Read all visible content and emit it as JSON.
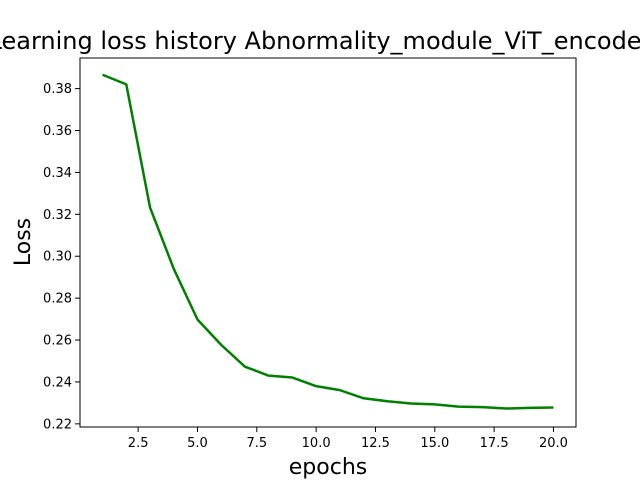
{
  "chart_data": {
    "type": "line",
    "title": "Learning loss history Abnormality_module_ViT_encoder",
    "xlabel": "epochs",
    "ylabel": "Loss",
    "xlim": [
      0.05,
      20.95
    ],
    "ylim": [
      0.2185,
      0.3946
    ],
    "x_ticks": [
      2.5,
      5.0,
      7.5,
      10.0,
      12.5,
      15.0,
      17.5,
      20.0
    ],
    "x_tick_labels": [
      "2.5",
      "5.0",
      "7.5",
      "10.0",
      "12.5",
      "15.0",
      "17.5",
      "20.0"
    ],
    "y_ticks": [
      0.22,
      0.24,
      0.26,
      0.28,
      0.3,
      0.32,
      0.34,
      0.36,
      0.38
    ],
    "y_tick_labels": [
      "0.22",
      "0.24",
      "0.26",
      "0.28",
      "0.30",
      "0.32",
      "0.34",
      "0.36",
      "0.38"
    ],
    "grid": false,
    "series": [
      {
        "color": "#008000",
        "x": [
          1,
          2,
          3,
          4,
          5,
          6,
          7,
          8,
          9,
          10,
          11,
          12,
          13,
          14,
          15,
          16,
          17,
          18,
          19,
          20
        ],
        "values": [
          0.3866,
          0.382,
          0.3233,
          0.294,
          0.2698,
          0.2577,
          0.2473,
          0.243,
          0.2421,
          0.238,
          0.2361,
          0.2322,
          0.2308,
          0.2297,
          0.2293,
          0.2282,
          0.228,
          0.2273,
          0.2276,
          0.2278
        ]
      }
    ]
  }
}
